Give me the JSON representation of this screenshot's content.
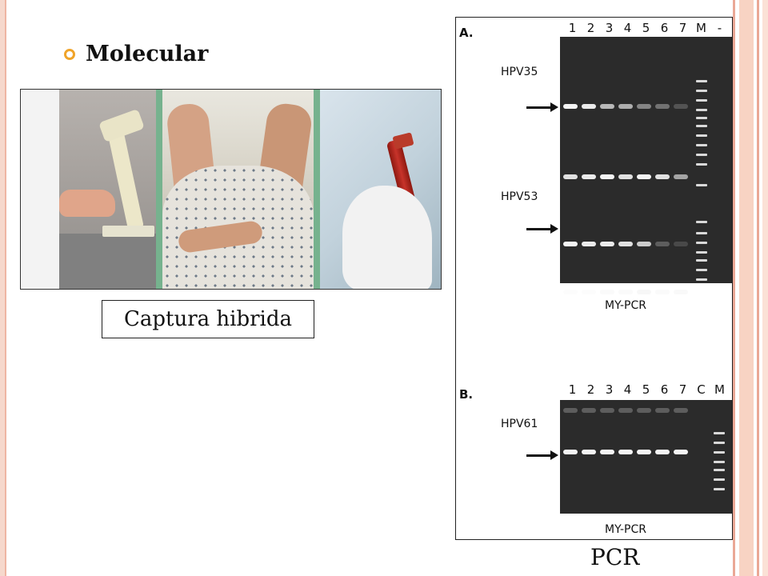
{
  "bullet": {
    "text": "Molecular",
    "dot_color": "#f0a42a"
  },
  "photos": [
    {
      "name": "microscope"
    },
    {
      "name": "gynecological-exam"
    },
    {
      "name": "blood-sample-tube"
    }
  ],
  "captions": {
    "left": "Captura hibrida",
    "right": "PCR"
  },
  "gel": {
    "panel_a": {
      "letter": "A.",
      "lanes": [
        "1",
        "2",
        "3",
        "4",
        "5",
        "6",
        "7",
        "M",
        "-"
      ],
      "labels": [
        "HPV35",
        "HPV53"
      ],
      "method": "MY-PCR"
    },
    "panel_b": {
      "letter": "B.",
      "lanes": [
        "1",
        "2",
        "3",
        "4",
        "5",
        "6",
        "7",
        "C",
        "M"
      ],
      "labels": [
        "HPV61"
      ],
      "method": "MY-PCR"
    }
  },
  "colors": {
    "frame": "#f6d8cc",
    "gel": "#2b2b2b",
    "separator": "#76b28e"
  }
}
